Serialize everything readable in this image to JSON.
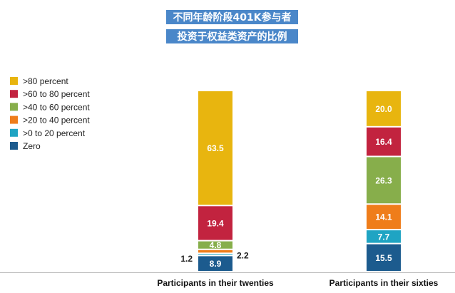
{
  "chart_data": {
    "type": "bar",
    "stacked": true,
    "title_lines": [
      "不同年龄阶段401K参与者",
      "投资于权益类资产的比例"
    ],
    "categories": [
      "Participants in their twenties",
      "Participants in their sixties"
    ],
    "series": [
      {
        "name": "Zero",
        "color": "#1c5b8e",
        "values": [
          8.9,
          15.5
        ]
      },
      {
        "name": ">0 to 20 percent",
        "color": "#1fa4c3",
        "values": [
          1.2,
          7.7
        ]
      },
      {
        "name": ">20 to 40 percent",
        "color": "#ef7d1a",
        "values": [
          2.2,
          14.1
        ]
      },
      {
        "name": ">40 to 60 percent",
        "color": "#87ae4b",
        "values": [
          4.8,
          26.3
        ]
      },
      {
        "name": ">60 to 80 percent",
        "color": "#c2233f",
        "values": [
          19.4,
          16.4
        ]
      },
      {
        "name": ">80 percent",
        "color": "#e8b50f",
        "values": [
          63.5,
          20.0
        ]
      }
    ],
    "value_labels": [
      [
        "8.9",
        "1.2",
        "2.2",
        "4.8",
        "19.4",
        "63.5"
      ],
      [
        "15.5",
        "7.7",
        "14.1",
        "26.3",
        "16.4",
        "20.0"
      ]
    ],
    "legend_order": [
      ">80 percent",
      ">60 to 80 percent",
      ">40 to 60 percent",
      ">20 to 40 percent",
      ">0 to 20 percent",
      "Zero"
    ],
    "legend_position": "top-left",
    "title_background": "#4a87c9",
    "ylim": [
      0,
      100
    ],
    "grid": false
  }
}
